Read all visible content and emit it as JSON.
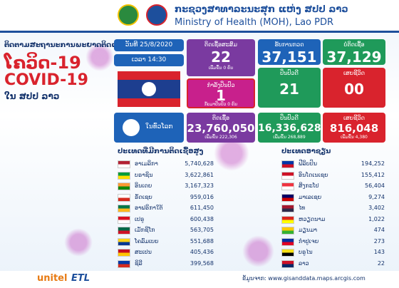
{
  "header": {
    "title_lao": "ກະຊວງສາທາລະນະສຸກ ແຫ່ງ ສປປ ລາວ",
    "title_en": "Ministry of Health (MOH), Lao PDR"
  },
  "intro": {
    "line1": "ຕິດຕາມສະຖານະການພະຍາດຕິດເຊື້ອ",
    "line2": "ໂຄວິດ-19",
    "line3": "COVID-19",
    "line4": "ໃນ ສປປ ລາວ"
  },
  "date": "ວັນທີ 25/8/2020",
  "time": "ເວລາ 14:30",
  "laos": {
    "cumulative": {
      "label": "ຕິດເຊື້ອສະສົມ",
      "value": "22",
      "note": "ເພີ່ມຂຶ້ນ 0 ຄົນ"
    },
    "tested": {
      "label": "ຮັບການກວດ",
      "value": "37,151"
    },
    "negative": {
      "label": "ບໍ່ຕິດເຊື້ອ",
      "value": "37,129"
    },
    "treating": {
      "label": "ກຳລັງປິ່ນປົວ",
      "value": "1",
      "note": "ກັບມາປິ່ນປົວ 0 ຄົນ"
    },
    "recovered": {
      "label": "ປິ່ນປົວດີ",
      "value": "21"
    },
    "deaths": {
      "label": "ເສຍຊີວິດ",
      "value": "00"
    }
  },
  "world": {
    "label": "ໃນທົ່ວໂລກ",
    "cases": {
      "label": "ຕິດເຊື້ອ",
      "value": "23,760,050",
      "note": "ເພີ່ມຂຶ້ນ 222,306"
    },
    "recovered": {
      "label": "ປິ່ນປົວດີ",
      "value": "16,336,628",
      "note": "ເພີ່ມຂຶ້ນ 268,889"
    },
    "deaths": {
      "label": "ເສຍຊີວິດ",
      "value": "816,048",
      "note": "ເພີ່ມຂຶ້ນ 4,380"
    }
  },
  "top_countries": {
    "title": "ປະເທດທີ່ມີການຕິດເຊື້ອສູງ",
    "rows": [
      [
        "ອາເມລິກາ",
        "5,740,628"
      ],
      [
        "ບຣາຊິນ",
        "3,622,861"
      ],
      [
        "ອິນເດຍ",
        "3,167,323"
      ],
      [
        "ຣັດເຊຍ",
        "959,016"
      ],
      [
        "ອາຟຣິກາໃຕ້",
        "611,450"
      ],
      [
        "ເປຣູ",
        "600,438"
      ],
      [
        "ເມັກຊິໂກ",
        "563,705"
      ],
      [
        "ໂຄລົມເບຍ",
        "551,688"
      ],
      [
        "ສະເປນ",
        "405,436"
      ],
      [
        "ຊິລີ",
        "399,568"
      ]
    ]
  },
  "asean": {
    "title": "ປະເທດອາຊຽນ",
    "rows": [
      [
        "ຟີລິບປິນ",
        "194,252"
      ],
      [
        "ອິນໂດເນເຊຍ",
        "155,412"
      ],
      [
        "ສິງກະໂປ",
        "56,404"
      ],
      [
        "ມາເລເຊຍ",
        "9,274"
      ],
      [
        "ໄທ",
        "3,402"
      ],
      [
        "ຫວຽດນາມ",
        "1,022"
      ],
      [
        "ມຽນມາ",
        "474"
      ],
      [
        "ກຳປູເຈຍ",
        "273"
      ],
      [
        "ບຣູໄນ",
        "143"
      ],
      [
        "ລາວ",
        "22"
      ]
    ]
  },
  "sponsors": [
    "unitel",
    "ETL"
  ],
  "source": "ຂໍ້ມູນຈາກ: www.gisanddata.maps.arcgis.com"
}
